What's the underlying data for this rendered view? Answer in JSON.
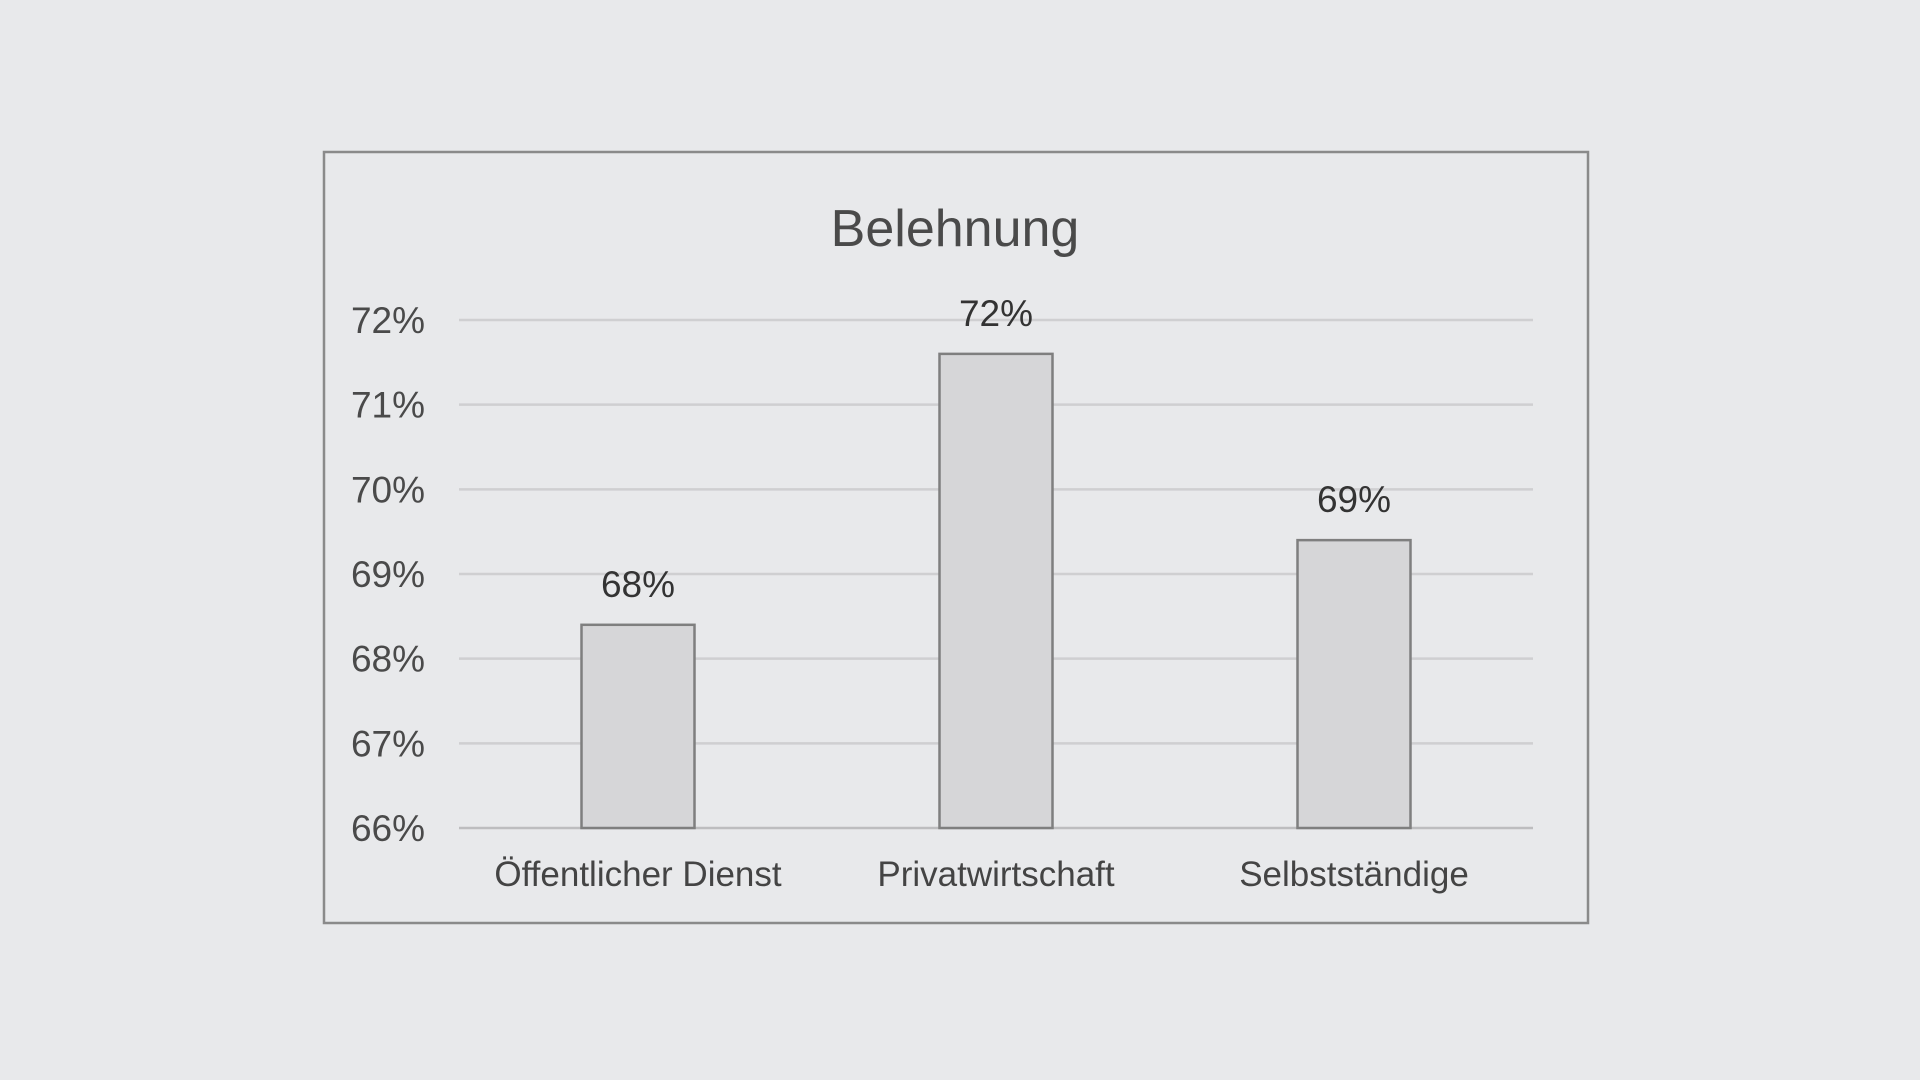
{
  "chart_data": {
    "type": "bar",
    "title": "Belehnung",
    "xlabel": "",
    "ylabel": "",
    "categories": [
      "Öffentlicher Dienst",
      "Privatwirtschaft",
      "Selbstständige"
    ],
    "values": [
      68.4,
      71.6,
      69.4
    ],
    "data_labels": [
      "68%",
      "72%",
      "69%"
    ],
    "y_ticks": [
      66,
      67,
      68,
      69,
      70,
      71,
      72
    ],
    "y_tick_labels": [
      "66%",
      "67%",
      "68%",
      "69%",
      "70%",
      "71%",
      "72%"
    ],
    "ylim": [
      66,
      72
    ],
    "grid": true,
    "legend": "none",
    "colors": {
      "background": "#e8e9eb",
      "bar_fill": "#d6d6d8",
      "bar_stroke": "#7f7f7f",
      "grid": "#cfcfd1",
      "frame": "#8a8a8a",
      "text": "#4a4a4a"
    }
  }
}
